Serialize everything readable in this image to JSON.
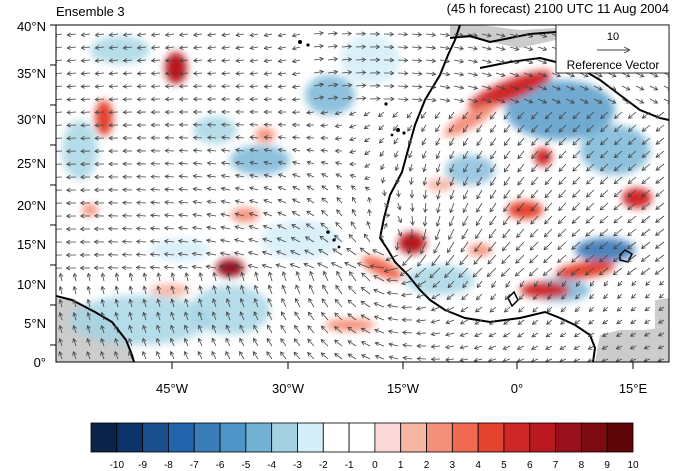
{
  "header": {
    "left_title": "Ensemble 3",
    "right_title": "(45 h forecast) 2100 UTC 11 Aug 2004"
  },
  "map": {
    "lat_labels": [
      "40°N",
      "35°N",
      "30°N",
      "25°N",
      "20°N",
      "15°N",
      "10°N",
      "5°N",
      "0°"
    ],
    "lon_labels": [
      "45°W",
      "30°W",
      "15°W",
      "0°",
      "15°E"
    ],
    "land_mask_color": "#cccccc",
    "coast_color": "#000000",
    "vector_color": "#444444"
  },
  "reference_vector": {
    "magnitude_label": "10",
    "label": "Reference Vector"
  },
  "colorbar": {
    "labels": [
      "-10",
      "-9",
      "-8",
      "-7",
      "-6",
      "-5",
      "-4",
      "-3",
      "-2",
      "-1",
      "0",
      "1",
      "2",
      "3",
      "4",
      "5",
      "6",
      "7",
      "8",
      "9",
      "10"
    ],
    "colors": [
      "#0b2348",
      "#0c3468",
      "#1a4f8b",
      "#2166ac",
      "#3a7db8",
      "#4c95c6",
      "#72b1d4",
      "#a3d3e3",
      "#d6eef8",
      "#ffffff",
      "#ffffff",
      "#fbd9d9",
      "#f7b5a4",
      "#f4907a",
      "#f06a51",
      "#e3432f",
      "#cf2727",
      "#b8181e",
      "#99101a",
      "#7d0c12",
      "#5e0608"
    ]
  }
}
